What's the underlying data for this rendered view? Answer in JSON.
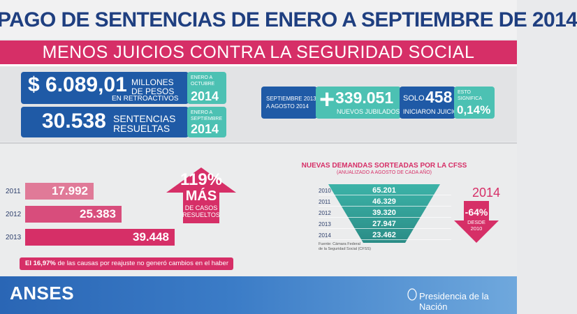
{
  "header": {
    "title": "PAGO DE SENTENCIAS DE ENERO A SEPTIEMBRE DE 2014",
    "subtitle": "MENOS JUICIOS CONTRA LA SEGURIDAD SOCIAL"
  },
  "stats": {
    "amount_value": "$ 6.089,01",
    "amount_unit": "MILLONES DE PESOS",
    "amount_sub": "EN RETROACTIVOS",
    "amount_period": "ENERO A OCTUBRE",
    "amount_year": "2014",
    "sentences_value": "30.538",
    "sentences_unit_1": "SENTENCIAS",
    "sentences_unit_2": "RESUELTAS",
    "sentences_period": "ENERO A SEPTIEMBRE",
    "sentences_year": "2014",
    "retirees_period_1": "SEPTIEMBRE 2013",
    "retirees_period_2": "A AGOSTO 2014",
    "retirees_plus": "+",
    "retirees_value": "339.051",
    "retirees_label": "NUEVOS JUBILADOS",
    "suits_prefix": "SOLO",
    "suits_value": "458",
    "suits_label": "INICIARON JUICIO",
    "meaning_label_1": "ESTO",
    "meaning_label_2": "SIGNIFICA",
    "meaning_value": "0,14%"
  },
  "left_chart": {
    "bars": [
      {
        "year": "2011",
        "value": "17.992",
        "fraction": 0.456,
        "color": "#e07a98"
      },
      {
        "year": "2012",
        "value": "25.383",
        "fraction": 0.643,
        "color": "#d84d7c"
      },
      {
        "year": "2013",
        "value": "39.448",
        "fraction": 1.0,
        "color": "#d62f67"
      }
    ],
    "growth_pct": "119%",
    "growth_word": "MÁS",
    "growth_sub_1": "DE CASOS",
    "growth_sub_2": "RESUELTOS",
    "note_bold": "El 16,97%",
    "note_rest": " de las causas por reajuste no generó cambios en el haber"
  },
  "right_chart": {
    "title": "NUEVAS DEMANDAS SORTEADAS POR LA CFSS",
    "subtitle": "(ANUALIZADO A AGOSTO DE CADA AÑO)",
    "rows": [
      {
        "year": "2010",
        "value": "65.201"
      },
      {
        "year": "2011",
        "value": "46.329"
      },
      {
        "year": "2012",
        "value": "39.320"
      },
      {
        "year": "2013",
        "value": "27.947"
      },
      {
        "year": "2014",
        "value": "23.462"
      }
    ],
    "source_1": "Fuente: Cámara Federal",
    "source_2": "de la Seguridad Social (CFSS)",
    "year_tag": "2014",
    "drop_pct": "-64%",
    "drop_sub_1": "DESDE",
    "drop_sub_2": "2010"
  },
  "footer": {
    "logo": "ANSES",
    "presidency": "Presidencia de la Nación"
  }
}
